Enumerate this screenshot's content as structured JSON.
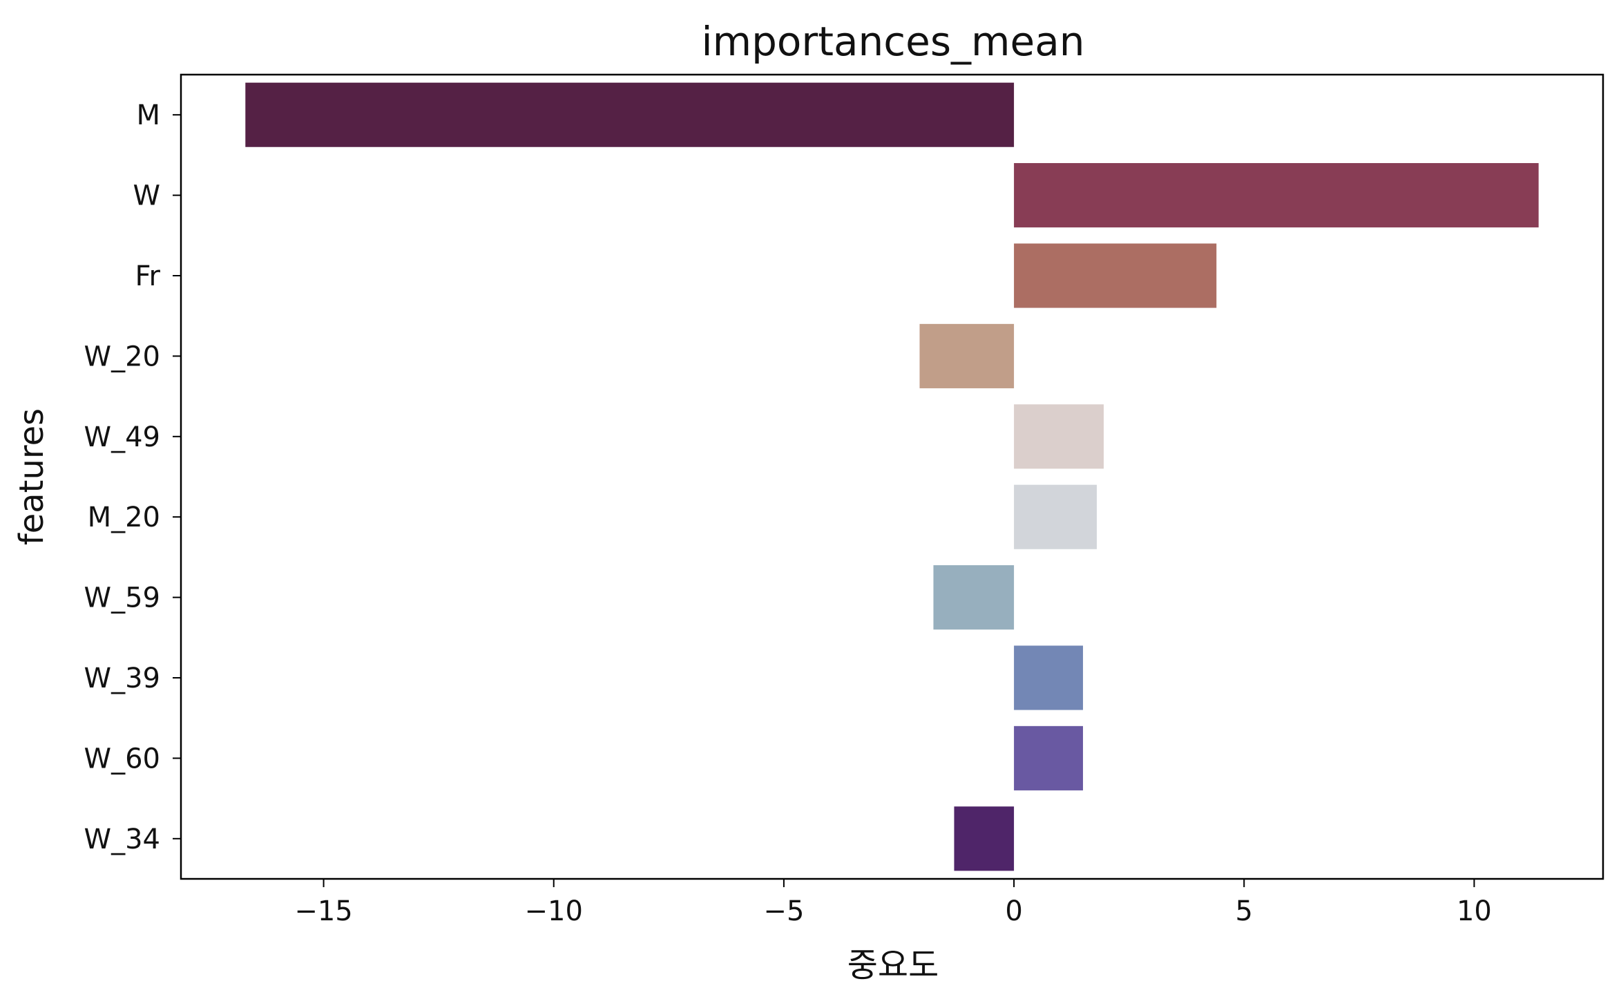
{
  "chart_data": {
    "type": "bar",
    "orientation": "horizontal",
    "title": "importances_mean",
    "xlabel": "중요도",
    "ylabel": "features",
    "categories": [
      "M",
      "W",
      "Fr",
      "W_20",
      "W_49",
      "M_20",
      "W_59",
      "W_39",
      "W_60",
      "W_34"
    ],
    "values": [
      -16.7,
      11.4,
      4.4,
      -2.05,
      1.95,
      1.8,
      -1.75,
      1.5,
      1.5,
      -1.3
    ],
    "colors": [
      "#552145",
      "#883d55",
      "#ac6e63",
      "#c19e89",
      "#dbcfcc",
      "#d2d5da",
      "#97afbe",
      "#7387b5",
      "#6959a2",
      "#4f2569"
    ],
    "xlim": [
      -18.1,
      12.8
    ],
    "xticks": [
      -15,
      -10,
      -5,
      0,
      5,
      10
    ],
    "xtick_labels": [
      "−15",
      "−10",
      "−5",
      "0",
      "5",
      "10"
    ],
    "grid": false,
    "legend": "none"
  }
}
